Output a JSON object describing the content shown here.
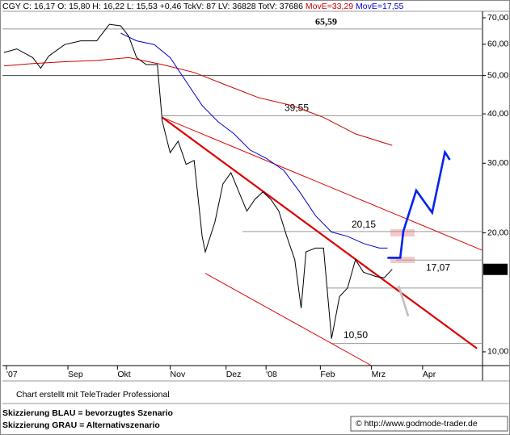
{
  "header": {
    "quote": "CGY C: 16,17 O: 15,80 H: 16,22 L: 15,53 +0,46 TckV: 87 LV: 36828 TotV: 37686"
  },
  "chart_data": {
    "type": "line",
    "log_scale": true,
    "xlim": [
      0,
      300
    ],
    "xticks": [
      {
        "value": 2.5,
        "label": "'07"
      },
      {
        "value": 41,
        "label": "Sep"
      },
      {
        "value": 72,
        "label": "Okt"
      },
      {
        "value": 105,
        "label": "Nov"
      },
      {
        "value": 140,
        "label": "Dez"
      },
      {
        "value": 165,
        "label": "'08"
      },
      {
        "value": 199,
        "label": "Feb"
      },
      {
        "value": 231,
        "label": "Mrz"
      },
      {
        "value": 263,
        "label": "Apr"
      }
    ],
    "ylim": [
      9.23,
      72.7
    ],
    "yticks": [
      {
        "value": 10,
        "label": "10,00"
      },
      {
        "value": 20,
        "label": "20,00"
      },
      {
        "value": 30,
        "label": "30,00"
      },
      {
        "value": 40,
        "label": "40,00"
      },
      {
        "value": 50,
        "label": "50,00"
      },
      {
        "value": 60,
        "label": "60,00"
      },
      {
        "value": 70,
        "label": "70,00"
      }
    ],
    "last_price": {
      "value": 16.17,
      "label": "16,17"
    },
    "series": [
      {
        "color": "#000000",
        "x": [
          1,
          9,
          19,
          24,
          29,
          39,
          49,
          59,
          67,
          74,
          79,
          84,
          90,
          97,
          100,
          105,
          110,
          115,
          120,
          125,
          127,
          133,
          138,
          143,
          148,
          153,
          158,
          163,
          168,
          173,
          178,
          183,
          187,
          190,
          196,
          201,
          206,
          211,
          216,
          221,
          226,
          234,
          239,
          244
        ],
        "values": [
          57.2,
          58.4,
          55.5,
          52.2,
          56.0,
          59.9,
          61.2,
          61.2,
          67.4,
          66.8,
          62.9,
          55.5,
          53.3,
          53.3,
          38.4,
          31.9,
          34.1,
          29.8,
          30.5,
          19.6,
          17.9,
          21.3,
          26.6,
          28.4,
          25.4,
          22.7,
          24.3,
          25.4,
          24.3,
          22.7,
          19.6,
          17.1,
          12.9,
          17.9,
          18.3,
          18.3,
          10.8,
          13.8,
          14.5,
          17.1,
          15.9,
          15.5,
          15.4,
          16.17
        ]
      },
      {
        "name": "MovE=33,29",
        "color": "#cc0000",
        "x": [
          1,
          19,
          39,
          59,
          79,
          100,
          120,
          140,
          160,
          181,
          201,
          221,
          244
        ],
        "values": [
          52.9,
          53.6,
          54.2,
          54.6,
          55.5,
          53.3,
          50.9,
          47.3,
          44.0,
          42.0,
          39.2,
          35.6,
          33.3
        ]
      },
      {
        "name": "MovE=17,55",
        "color": "#0000cc",
        "x": [
          74,
          84,
          95,
          105,
          115,
          125,
          135,
          145,
          155,
          165,
          176,
          186,
          196,
          206,
          216,
          226,
          236,
          241
        ],
        "values": [
          64.0,
          61.2,
          59.9,
          55.5,
          48.3,
          42.0,
          38.2,
          35.6,
          32.4,
          30.9,
          28.8,
          25.4,
          22.1,
          20.1,
          19.6,
          18.8,
          18.3,
          18.3
        ]
      },
      {
        "color": "#0022ee",
        "x": [
          241,
          249,
          251,
          259,
          269,
          277,
          280
        ],
        "values": [
          17.3,
          17.3,
          20.2,
          25.6,
          22.5,
          32.0,
          30.6
        ]
      },
      {
        "color": "#c0c0c0",
        "x": [
          248,
          254
        ],
        "values": [
          14.7,
          12.3
        ]
      }
    ],
    "trendlines": [
      {
        "color": "#dd0000",
        "x": [
          100,
          297
        ],
        "values": [
          39.2,
          10.2
        ]
      },
      {
        "color": "#dd0000",
        "x": [
          100,
          300
        ],
        "values": [
          39.2,
          18.1
        ]
      },
      {
        "color": "#dd0000",
        "x": [
          127,
          231
        ],
        "values": [
          15.8,
          9.23
        ]
      }
    ],
    "levels": [
      {
        "value": 65.59,
        "label": "65,59"
      },
      {
        "value": 50
      },
      {
        "value": 39.55,
        "label": "39,55"
      },
      {
        "value": 20.15,
        "label": "20,15"
      },
      {
        "value": 17.07,
        "label": "17,07"
      },
      {
        "value": 14.5
      },
      {
        "value": 10.5,
        "label": "10,50"
      }
    ]
  },
  "footer": {
    "credit": "Chart erstellt mit TeleTrader Professional",
    "blue_note": "Skizzierung BLAU = bevorzugtes Szenario",
    "gray_note": "Skizzierung GRAU = Alternativszenario",
    "source": "© http://www.godmode-trader.de"
  }
}
